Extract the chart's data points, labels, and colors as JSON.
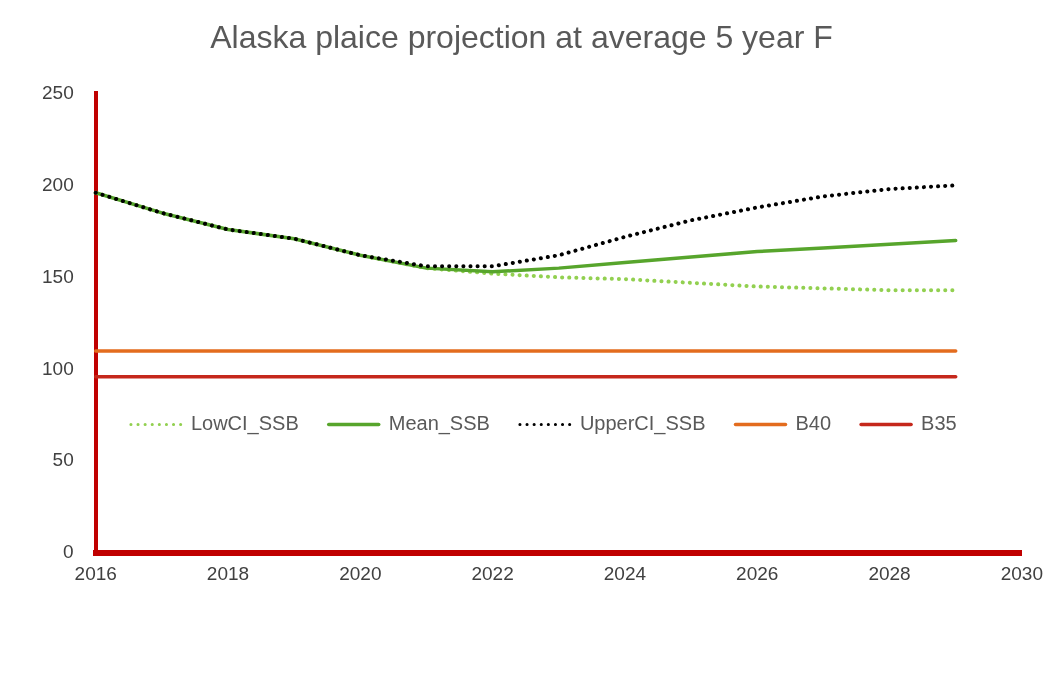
{
  "chart_data": {
    "type": "line",
    "title": "Alaska plaice projection at average 5 year F",
    "x": [
      2016,
      2017,
      2018,
      2019,
      2020,
      2021,
      2022,
      2023,
      2024,
      2025,
      2026,
      2027,
      2028,
      2029
    ],
    "series": [
      {
        "name": "LowCI_SSB",
        "color": "#92d050",
        "line_style": "dotted",
        "values": [
          196,
          185,
          176,
          171,
          162,
          155,
          152,
          150,
          149,
          147,
          145,
          144,
          143,
          143
        ]
      },
      {
        "name": "Mean_SSB",
        "color": "#57a52c",
        "line_style": "solid",
        "values": [
          196,
          185,
          176,
          171,
          162,
          155,
          153,
          155,
          158,
          161,
          164,
          166,
          168,
          170
        ]
      },
      {
        "name": "UpperCI_SSB",
        "color": "#000000",
        "line_style": "dotted",
        "values": [
          196,
          185,
          176,
          171,
          162,
          156,
          156,
          162,
          172,
          181,
          188,
          194,
          198,
          200
        ]
      },
      {
        "name": "B40",
        "color": "#e36c1e",
        "line_style": "solid",
        "values": [
          110,
          110,
          110,
          110,
          110,
          110,
          110,
          110,
          110,
          110,
          110,
          110,
          110,
          110
        ]
      },
      {
        "name": "B35",
        "color": "#c5281c",
        "line_style": "solid",
        "values": [
          96,
          96,
          96,
          96,
          96,
          96,
          96,
          96,
          96,
          96,
          96,
          96,
          96,
          96
        ]
      }
    ],
    "xlim": [
      2016,
      2030
    ],
    "xticks": [
      2016,
      2018,
      2020,
      2022,
      2024,
      2026,
      2028,
      2030
    ],
    "ylim": [
      0,
      250
    ],
    "yticks": [
      0,
      50,
      100,
      150,
      200,
      250
    ],
    "grid": false,
    "legend": "center",
    "marker": "none"
  }
}
